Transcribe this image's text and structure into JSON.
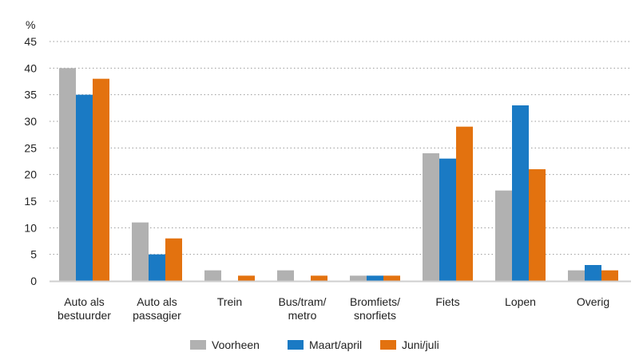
{
  "chart_data": {
    "type": "bar",
    "title": "",
    "xlabel": "",
    "ylabel": "%",
    "ylim": [
      0,
      45
    ],
    "yticks": [
      0,
      5,
      10,
      15,
      20,
      25,
      30,
      35,
      40,
      45
    ],
    "grid": true,
    "legend_position": "bottom",
    "categories": [
      [
        "Auto als",
        "bestuurder"
      ],
      [
        "Auto als",
        "passagier"
      ],
      [
        "Trein"
      ],
      [
        "Bus/tram/",
        "metro"
      ],
      [
        "Bromfiets/",
        "snorfiets"
      ],
      [
        "Fiets"
      ],
      [
        "Lopen"
      ],
      [
        "Overig"
      ]
    ],
    "series": [
      {
        "name": "Voorheen",
        "color": "#b1b1b1",
        "values": [
          40,
          11,
          2,
          2,
          1,
          24,
          17,
          2
        ]
      },
      {
        "name": "Maart/april",
        "color": "#1a7ac4",
        "values": [
          35,
          5,
          0,
          0,
          1,
          23,
          33,
          3
        ]
      },
      {
        "name": "Juni/juli",
        "color": "#e3720f",
        "values": [
          38,
          8,
          1,
          1,
          1,
          29,
          21,
          2
        ]
      }
    ]
  }
}
